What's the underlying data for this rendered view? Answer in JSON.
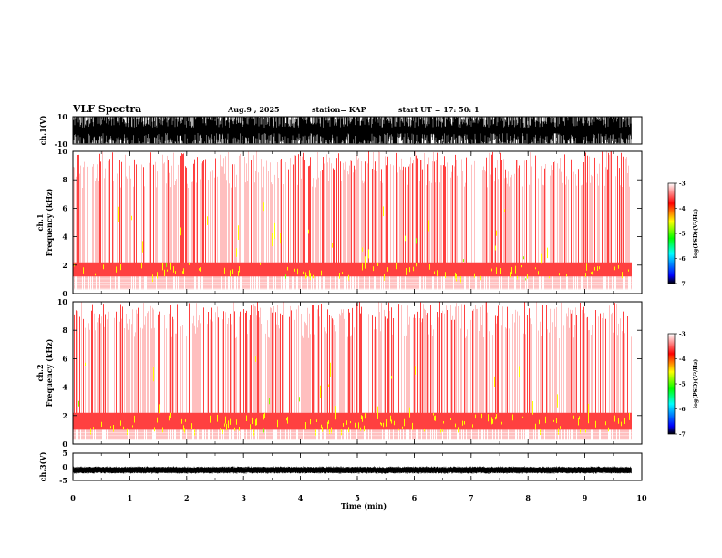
{
  "header": {
    "title": "VLF Spectra",
    "date": "Aug.9 , 2025",
    "station": "station= KAP",
    "start": "start UT = 17: 50: 1"
  },
  "chart_data": [
    {
      "type": "line",
      "id": "ch1-waveform",
      "ylabel": "ch.1(V)",
      "ylim": [
        -10,
        10
      ],
      "yticks": [
        "10",
        "-10"
      ]
    },
    {
      "type": "heatmap",
      "id": "ch1-spectrogram",
      "ylabel_line1": "ch.1",
      "ylabel_line2": "Frequency (kHz)",
      "ylim": [
        0,
        10
      ],
      "yticks": [
        "0",
        "2",
        "4",
        "6",
        "8",
        "10"
      ],
      "band_khz": [
        1.2,
        2.2
      ]
    },
    {
      "type": "heatmap",
      "id": "ch2-spectrogram",
      "ylabel_line1": "ch.2",
      "ylabel_line2": "Frequency (kHz)",
      "ylim": [
        0,
        10
      ],
      "yticks": [
        "0",
        "2",
        "4",
        "6",
        "8",
        "10"
      ],
      "band_khz": [
        1.0,
        2.2
      ]
    },
    {
      "type": "line",
      "id": "ch3-waveform",
      "ylabel": "ch.3(V)",
      "ylim": [
        -5,
        5
      ],
      "yticks": [
        "5",
        "0",
        "-5"
      ]
    }
  ],
  "xaxis": {
    "label": "Time (min)",
    "range": [
      0,
      10
    ],
    "ticks": [
      "0",
      "1",
      "2",
      "3",
      "4",
      "5",
      "6",
      "7",
      "8",
      "9",
      "10"
    ],
    "data_end": 9.82
  },
  "colorbar": {
    "label": "log(PSD)(V²/Hz)",
    "ticks": [
      "-3",
      "-4",
      "-5",
      "-6",
      "-7"
    ],
    "range": [
      -7,
      -3
    ]
  },
  "colors": {
    "psd_high": "#ff0000",
    "psd_mid": "#ffff00",
    "psd_low": "#0000ff",
    "wave": "#000000"
  }
}
